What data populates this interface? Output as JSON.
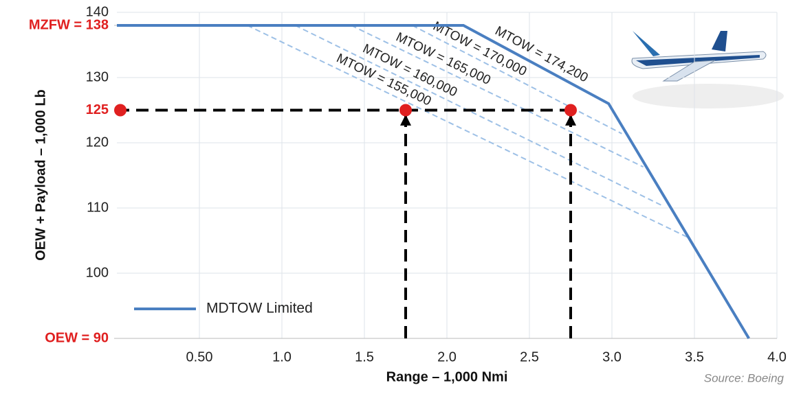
{
  "chart_data": {
    "type": "line",
    "x_label": "Range – 1,000 Nmi",
    "y_label": "OEW + Payload – 1,000 Lb",
    "source": "Source: Boeing",
    "xlim": [
      0,
      4
    ],
    "ylim": [
      90,
      140
    ],
    "xticks": [
      {
        "value": 0.5,
        "label": "0.50"
      },
      {
        "value": 1,
        "label": "1.0"
      },
      1.5,
      {
        "value": 2,
        "label": "2.0"
      },
      2.5,
      {
        "value": 3,
        "label": "3.0"
      },
      3.5,
      {
        "value": 4,
        "label": "4.0"
      }
    ],
    "yticks": [
      100,
      110,
      120,
      130,
      140
    ],
    "marked_yticks": [
      {
        "value": 138,
        "label": "MZFW = 138"
      },
      125,
      {
        "value": 90,
        "label": "OEW = 90"
      }
    ],
    "marked_color": "#e02020",
    "grid": true,
    "series": [
      {
        "name": "MDTOW Limited",
        "color": "#4a7fc1",
        "x": [
          0,
          2.1,
          2.98,
          3.83
        ],
        "values": [
          138,
          138,
          126,
          90
        ]
      }
    ],
    "legend": "lower left",
    "line_annotation": {
      "text": "MTOW = 174,200"
    },
    "mtow_lines": [
      {
        "label": "MTOW = 155,000",
        "x": [
          0.79,
          3.46
        ],
        "values": [
          138,
          105.5
        ]
      },
      {
        "label": "MTOW = 160,000",
        "x": [
          1.08,
          3.31
        ],
        "values": [
          138,
          110.3
        ]
      },
      {
        "label": "MTOW = 165,000",
        "x": [
          1.42,
          3.19
        ],
        "values": [
          138,
          116.3
        ]
      },
      {
        "label": "MTOW = 170,000",
        "x": [
          1.79,
          3.06
        ],
        "values": [
          138,
          121.4
        ]
      }
    ],
    "mtow_color": "#9dc0e6",
    "markers": {
      "x": [
        0,
        1.75,
        2.75
      ],
      "values": [
        125,
        125,
        125
      ],
      "color": "#e02020"
    }
  }
}
